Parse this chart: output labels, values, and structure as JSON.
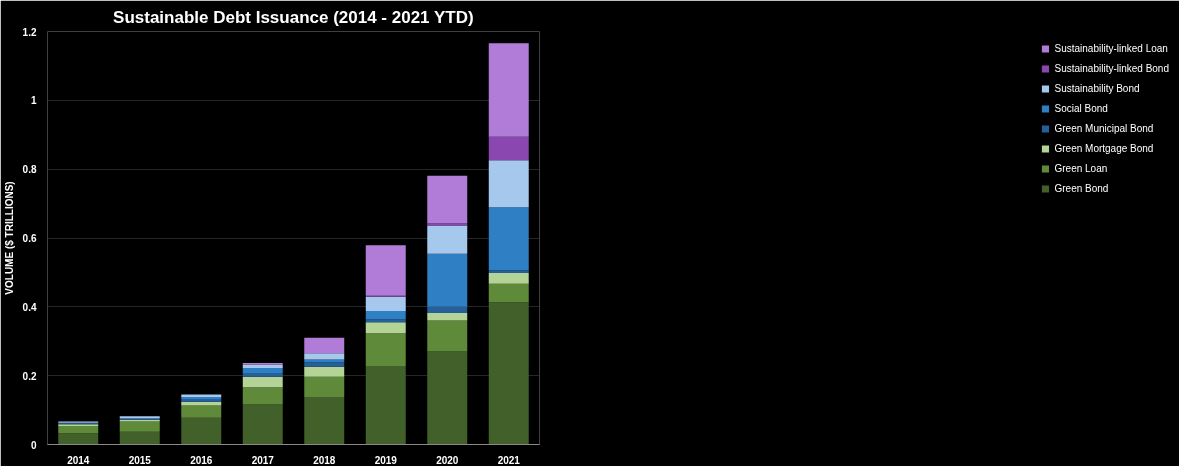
{
  "chart_data": {
    "type": "bar",
    "stacked": true,
    "title": "Sustainable Debt Issuance (2014 - 2021 YTD)",
    "ylabel": "VOLUME ($ TRILLIONS)",
    "categories": [
      "2014",
      "2015",
      "2016",
      "2017",
      "2018",
      "2019",
      "2020",
      "2021"
    ],
    "ylim": [
      0,
      1.2
    ],
    "yticks": [
      0,
      0.2,
      0.4,
      0.6,
      0.8,
      1,
      1.2
    ],
    "grid": "y",
    "legend": "right",
    "series": [
      {
        "name": "Green Bond",
        "color": "#41602a",
        "values": [
          0.033,
          0.037,
          0.078,
          0.116,
          0.138,
          0.228,
          0.27,
          0.413
        ]
      },
      {
        "name": "Green Loan",
        "color": "#5f8a3a",
        "values": [
          0.021,
          0.03,
          0.035,
          0.05,
          0.059,
          0.095,
          0.09,
          0.054
        ]
      },
      {
        "name": "Green Mortgage Bond",
        "color": "#b3d496",
        "values": [
          0.005,
          0.005,
          0.011,
          0.031,
          0.029,
          0.032,
          0.022,
          0.031
        ]
      },
      {
        "name": "Green Municipal Bond",
        "color": "#25609a",
        "values": [
          0.002,
          0.002,
          0.008,
          0.011,
          0.013,
          0.008,
          0.018,
          0.008
        ]
      },
      {
        "name": "Social Bond",
        "color": "#2f7fc4",
        "values": [
          0.002,
          0.002,
          0.006,
          0.014,
          0.008,
          0.025,
          0.154,
          0.183
        ]
      },
      {
        "name": "Sustainability Bond",
        "color": "#a6c8ec",
        "values": [
          0.004,
          0.006,
          0.007,
          0.01,
          0.018,
          0.041,
          0.082,
          0.137
        ]
      },
      {
        "name": "Sustainability-linked Bond",
        "color": "#8a47b0",
        "values": [
          0,
          0,
          0,
          0,
          null,
          0.003,
          0.007,
          0.068
        ]
      },
      {
        "name": "Sustainability-linked Loan",
        "color": "#b07cd8",
        "values": [
          0,
          0,
          0,
          0.005,
          0.045,
          0.147,
          0.138,
          0.272
        ]
      }
    ]
  }
}
